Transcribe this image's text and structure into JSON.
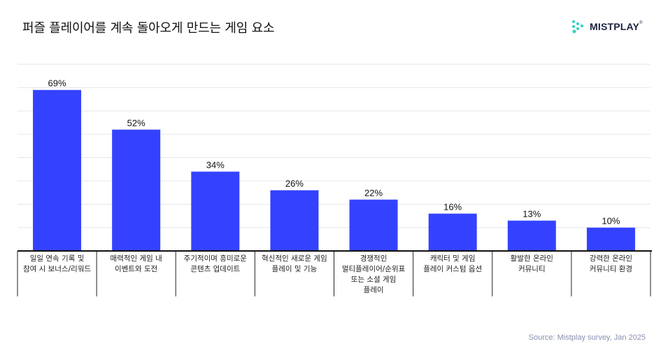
{
  "title": "퍼즐 플레이어를 계속 돌아오게 만드는 게임 요소",
  "brand": {
    "name": "MISTPLAY",
    "mark": "®",
    "logo_icon": "dots-logo-icon",
    "logo_color": "#2fd1c5"
  },
  "source": "Source: Mistplay survey, Jan 2025",
  "chart_data": {
    "type": "bar",
    "title": "퍼즐 플레이어를 계속 돌아오게 만드는 게임 요소",
    "xlabel": "",
    "ylabel": "",
    "ylim": [
      0,
      80
    ],
    "grid": true,
    "bar_color": "#3442ff",
    "unit": "%",
    "categories": [
      [
        "일일 연속 기록 및",
        "참여 시 보너스/리워드"
      ],
      [
        "매력적인 게임 내",
        "이벤트와 도전"
      ],
      [
        "주기적이며 흥미로운",
        "콘텐츠 업데이트"
      ],
      [
        "혁신적인 새로운 게임",
        "플레이 및 기능"
      ],
      [
        "경쟁적인",
        "멀티플레이어/순위표",
        "또는 소셜 게임",
        "플레이"
      ],
      [
        "캐릭터 및 게임",
        "플레이 커스텀 옵션"
      ],
      [
        "활발한 온라인",
        "커뮤니티"
      ],
      [
        "강력한 온라인",
        "커뮤니티 환경"
      ]
    ],
    "values": [
      69,
      52,
      34,
      26,
      22,
      16,
      13,
      10
    ],
    "value_labels": [
      "69%",
      "52%",
      "34%",
      "26%",
      "22%",
      "16%",
      "13%",
      "10%"
    ]
  }
}
